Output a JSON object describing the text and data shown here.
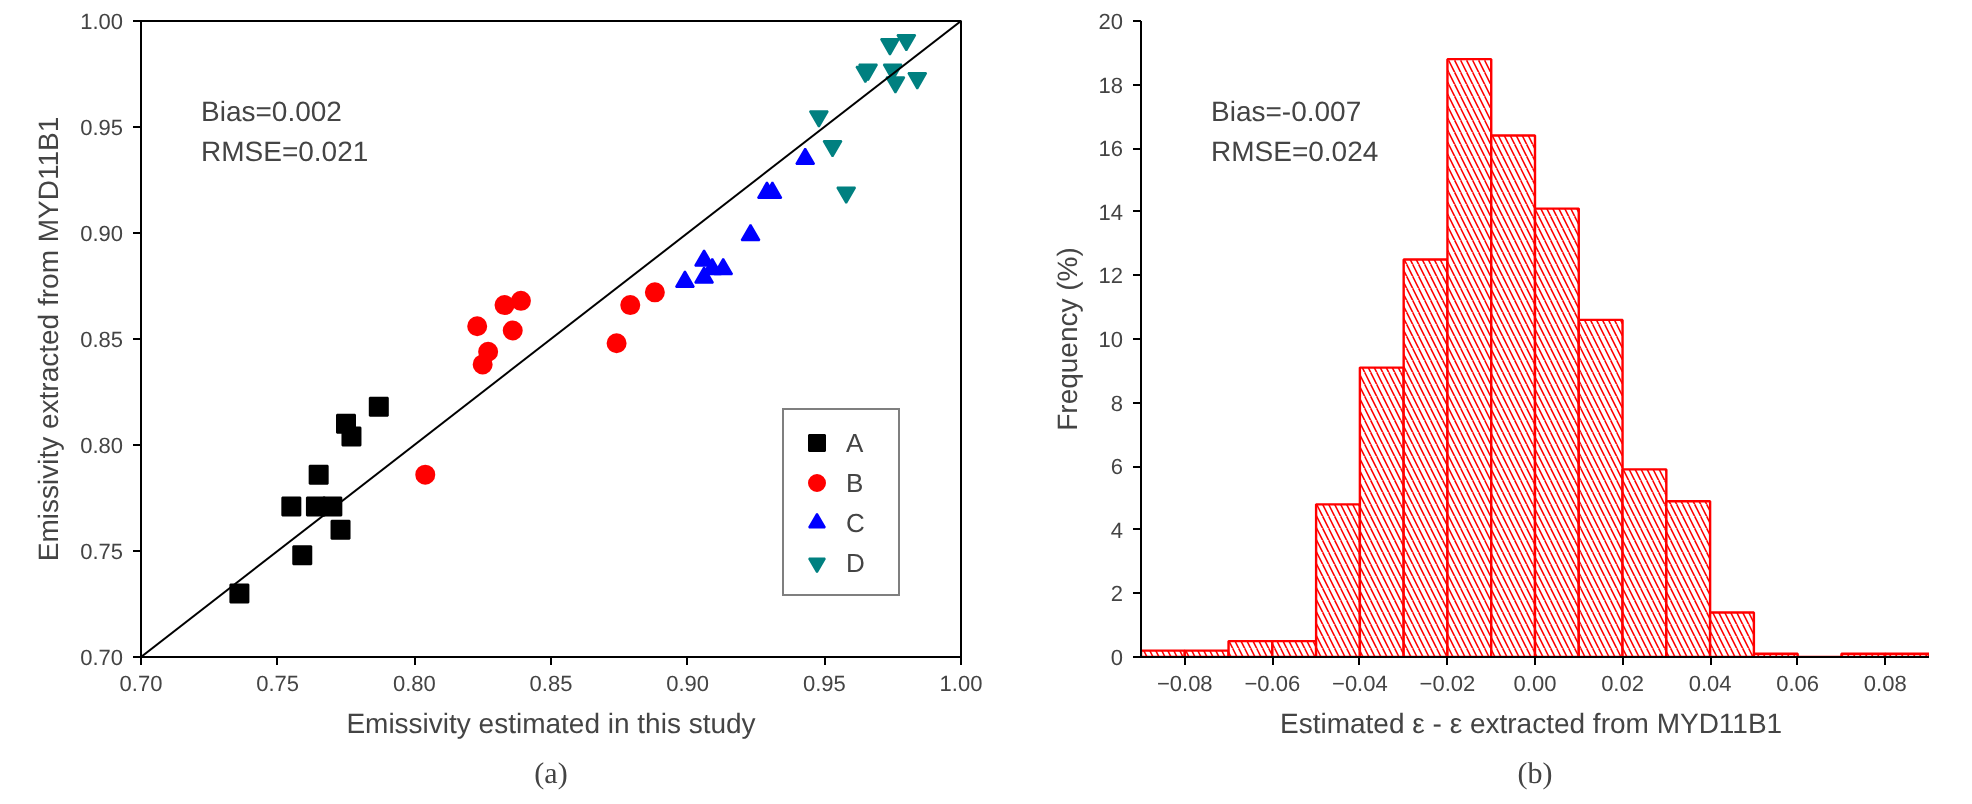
{
  "chart_data": [
    {
      "type": "scatter",
      "title": "(a)",
      "xlabel": "Emissivity estimated in this study",
      "ylabel": "Emissivity extracted from MYD11B1",
      "annotations": [
        "Bias=0.002",
        "RMSE=0.021"
      ],
      "xlim": [
        0.7,
        1.0
      ],
      "ylim": [
        0.7,
        1.0
      ],
      "xticks": [
        {
          "value": 0.7,
          "label": "0.70"
        },
        {
          "value": 0.75,
          "label": "0.75"
        },
        {
          "value": 0.8,
          "label": "0.80"
        },
        {
          "value": 0.85,
          "label": "0.85"
        },
        {
          "value": 0.9,
          "label": "0.90"
        },
        {
          "value": 0.95,
          "label": "0.95"
        },
        {
          "value": 1.0,
          "label": "1.00"
        }
      ],
      "yticks": [
        {
          "value": 0.7,
          "label": "0.70"
        },
        {
          "value": 0.75,
          "label": "0.75"
        },
        {
          "value": 0.8,
          "label": "0.80"
        },
        {
          "value": 0.85,
          "label": "0.85"
        },
        {
          "value": 0.9,
          "label": "0.90"
        },
        {
          "value": 0.95,
          "label": "0.95"
        },
        {
          "value": 1.0,
          "label": "1.00"
        }
      ],
      "grid": false,
      "legend": "bottom right",
      "series": [
        {
          "name": "A",
          "color": "#000000",
          "marker": "square",
          "x": [
            0.736,
            0.759,
            0.755,
            0.764,
            0.765,
            0.77,
            0.773,
            0.775,
            0.777,
            0.787
          ],
          "values": [
            0.73,
            0.748,
            0.771,
            0.771,
            0.786,
            0.771,
            0.76,
            0.81,
            0.804,
            0.818
          ]
        },
        {
          "name": "B",
          "color": "#ff0000",
          "marker": "circle",
          "x": [
            0.804,
            0.823,
            0.825,
            0.827,
            0.833,
            0.836,
            0.839,
            0.874,
            0.879,
            0.888
          ],
          "values": [
            0.786,
            0.856,
            0.838,
            0.844,
            0.866,
            0.854,
            0.868,
            0.848,
            0.866,
            0.872
          ]
        },
        {
          "name": "C",
          "color": "#0000ff",
          "marker": "triangle",
          "x": [
            0.899,
            0.906,
            0.906,
            0.909,
            0.913,
            0.923,
            0.929,
            0.931,
            0.943
          ],
          "values": [
            0.877,
            0.887,
            0.879,
            0.883,
            0.883,
            0.899,
            0.919,
            0.919,
            0.935
          ]
        },
        {
          "name": "D",
          "color": "#008080",
          "x": [
            0.948,
            0.953,
            0.958,
            0.965,
            0.966,
            0.974,
            0.98,
            0.975,
            0.976,
            0.984
          ],
          "values": [
            0.955,
            0.941,
            0.919,
            0.976,
            0.977,
            0.989,
            0.991,
            0.977,
            0.971,
            0.973
          ]
        },
        {
          "type": "line",
          "color": "#000000",
          "x": [
            0.7,
            1.0
          ],
          "values": [
            0.7,
            1.0
          ]
        }
      ]
    },
    {
      "type": "histogram",
      "title": "(b)",
      "xlabel": "Estimated ε  - ε extracted from MYD11B1",
      "ylabel": "Frequency (%)",
      "annotations": [
        "Bias=-0.007",
        "RMSE=0.024"
      ],
      "color": "#ff0000",
      "bins": [
        -0.09,
        -0.08,
        -0.07,
        -0.06,
        -0.05,
        -0.04,
        -0.03,
        -0.02,
        -0.01,
        0.0,
        0.01,
        0.02,
        0.03,
        0.04,
        0.05,
        0.06,
        0.07,
        0.08,
        0.09
      ],
      "values": [
        0.2,
        0.2,
        0.5,
        0.5,
        4.8,
        9.1,
        12.5,
        18.8,
        16.4,
        14.1,
        10.6,
        5.9,
        4.9,
        1.4,
        0.1,
        0,
        0.1,
        0.1
      ],
      "xlim": [
        -0.09,
        0.09
      ],
      "ylim": [
        0,
        20
      ],
      "xticks": [
        -0.08,
        -0.06,
        -0.04,
        -0.02,
        {
          "value": 0.0,
          "label": "0.00"
        },
        0.02,
        0.04,
        0.06,
        0.08
      ],
      "yticks": [
        0,
        2,
        4,
        6,
        8,
        10,
        12,
        14,
        16,
        18,
        20
      ],
      "grid": false
    }
  ]
}
